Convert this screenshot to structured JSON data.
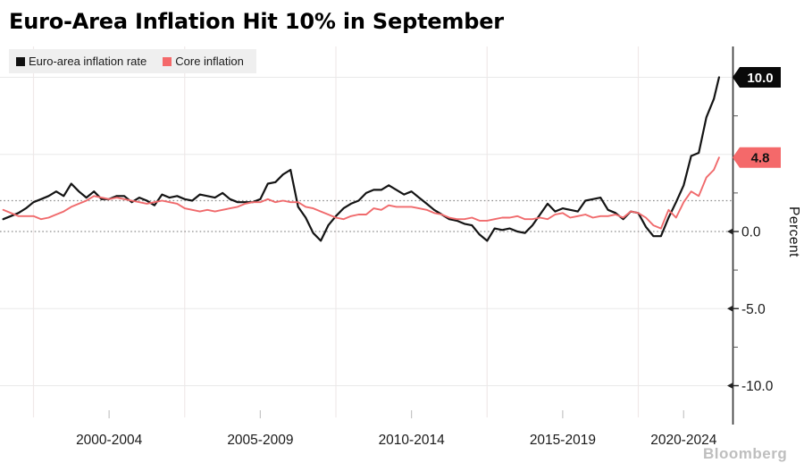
{
  "page": {
    "title": "Euro-Area Inflation Hit 10% in September",
    "watermark": "Bloomberg"
  },
  "legend": {
    "items": [
      {
        "label": "Euro-area inflation rate",
        "color": "#111111"
      },
      {
        "label": "Core inflation",
        "color": "#f4696a"
      }
    ]
  },
  "chart_data": {
    "type": "line",
    "title": "Euro-Area Inflation Hit 10% in September",
    "xlabel": "",
    "ylabel": "Percent",
    "ylim": [
      -12,
      12
    ],
    "xlim": [
      1999,
      2023.1
    ],
    "grid": {
      "h_light_values": [
        10,
        5,
        -5,
        -10
      ],
      "h_dotted_values": [
        2,
        0
      ],
      "v_gridline_years": [
        2000,
        2005,
        2010,
        2015,
        2020
      ]
    },
    "yticks": {
      "labeled": [
        {
          "value": 0,
          "label": "0.0"
        },
        {
          "value": -5,
          "label": "-5.0"
        },
        {
          "value": -10,
          "label": "-10.0"
        }
      ],
      "minor": [
        7.5,
        2.5,
        -2.5,
        -7.5
      ]
    },
    "xticks": [
      {
        "label": "2000-2004",
        "center_year": 2002.5
      },
      {
        "label": "2005-2009",
        "center_year": 2007.5
      },
      {
        "label": "2010-2014",
        "center_year": 2012.5
      },
      {
        "label": "2015-2019",
        "center_year": 2017.5
      },
      {
        "label": "2020-2024",
        "center_year": 2021.5
      }
    ],
    "end_labels": [
      {
        "label": "10.0",
        "value": 10.0,
        "bg": "#0a0a0a",
        "fg": "#ffffff"
      },
      {
        "label": "4.8",
        "value": 4.8,
        "bg": "#f4696a",
        "fg": "#111111"
      }
    ],
    "series": [
      {
        "name": "Euro-area inflation rate",
        "color": "#141414",
        "width": 2.2,
        "points": [
          [
            1999.0,
            0.8
          ],
          [
            1999.25,
            1.0
          ],
          [
            1999.5,
            1.2
          ],
          [
            1999.75,
            1.5
          ],
          [
            2000.0,
            1.9
          ],
          [
            2000.25,
            2.1
          ],
          [
            2000.5,
            2.3
          ],
          [
            2000.75,
            2.6
          ],
          [
            2001.0,
            2.3
          ],
          [
            2001.25,
            3.1
          ],
          [
            2001.5,
            2.6
          ],
          [
            2001.75,
            2.2
          ],
          [
            2002.0,
            2.6
          ],
          [
            2002.25,
            2.1
          ],
          [
            2002.5,
            2.1
          ],
          [
            2002.75,
            2.3
          ],
          [
            2003.0,
            2.3
          ],
          [
            2003.25,
            1.9
          ],
          [
            2003.5,
            2.2
          ],
          [
            2003.75,
            2.0
          ],
          [
            2004.0,
            1.7
          ],
          [
            2004.25,
            2.4
          ],
          [
            2004.5,
            2.2
          ],
          [
            2004.75,
            2.3
          ],
          [
            2005.0,
            2.1
          ],
          [
            2005.25,
            2.0
          ],
          [
            2005.5,
            2.4
          ],
          [
            2005.75,
            2.3
          ],
          [
            2006.0,
            2.2
          ],
          [
            2006.25,
            2.5
          ],
          [
            2006.5,
            2.1
          ],
          [
            2006.75,
            1.9
          ],
          [
            2007.0,
            1.9
          ],
          [
            2007.25,
            1.9
          ],
          [
            2007.5,
            2.1
          ],
          [
            2007.75,
            3.1
          ],
          [
            2008.0,
            3.2
          ],
          [
            2008.25,
            3.7
          ],
          [
            2008.5,
            4.0
          ],
          [
            2008.75,
            1.6
          ],
          [
            2009.0,
            0.9
          ],
          [
            2009.25,
            -0.1
          ],
          [
            2009.5,
            -0.6
          ],
          [
            2009.75,
            0.4
          ],
          [
            2010.0,
            1.0
          ],
          [
            2010.25,
            1.5
          ],
          [
            2010.5,
            1.8
          ],
          [
            2010.75,
            2.0
          ],
          [
            2011.0,
            2.5
          ],
          [
            2011.25,
            2.7
          ],
          [
            2011.5,
            2.7
          ],
          [
            2011.75,
            3.0
          ],
          [
            2012.0,
            2.7
          ],
          [
            2012.25,
            2.4
          ],
          [
            2012.5,
            2.6
          ],
          [
            2012.75,
            2.2
          ],
          [
            2013.0,
            1.8
          ],
          [
            2013.25,
            1.4
          ],
          [
            2013.5,
            1.1
          ],
          [
            2013.75,
            0.8
          ],
          [
            2014.0,
            0.7
          ],
          [
            2014.25,
            0.5
          ],
          [
            2014.5,
            0.4
          ],
          [
            2014.75,
            -0.2
          ],
          [
            2015.0,
            -0.6
          ],
          [
            2015.25,
            0.2
          ],
          [
            2015.5,
            0.1
          ],
          [
            2015.75,
            0.2
          ],
          [
            2016.0,
            0.0
          ],
          [
            2016.25,
            -0.1
          ],
          [
            2016.5,
            0.4
          ],
          [
            2016.75,
            1.1
          ],
          [
            2017.0,
            1.8
          ],
          [
            2017.25,
            1.3
          ],
          [
            2017.5,
            1.5
          ],
          [
            2017.75,
            1.4
          ],
          [
            2018.0,
            1.3
          ],
          [
            2018.25,
            2.0
          ],
          [
            2018.5,
            2.1
          ],
          [
            2018.75,
            2.2
          ],
          [
            2019.0,
            1.4
          ],
          [
            2019.25,
            1.2
          ],
          [
            2019.5,
            0.8
          ],
          [
            2019.75,
            1.3
          ],
          [
            2020.0,
            1.2
          ],
          [
            2020.25,
            0.3
          ],
          [
            2020.5,
            -0.3
          ],
          [
            2020.75,
            -0.3
          ],
          [
            2021.0,
            0.9
          ],
          [
            2021.25,
            1.9
          ],
          [
            2021.5,
            3.0
          ],
          [
            2021.75,
            4.9
          ],
          [
            2022.0,
            5.1
          ],
          [
            2022.25,
            7.4
          ],
          [
            2022.5,
            8.6
          ],
          [
            2022.67,
            10.0
          ]
        ]
      },
      {
        "name": "Core inflation",
        "color": "#f06a6c",
        "width": 1.9,
        "points": [
          [
            1999.0,
            1.4
          ],
          [
            1999.25,
            1.2
          ],
          [
            1999.5,
            1.0
          ],
          [
            1999.75,
            1.0
          ],
          [
            2000.0,
            1.0
          ],
          [
            2000.25,
            0.8
          ],
          [
            2000.5,
            0.9
          ],
          [
            2000.75,
            1.1
          ],
          [
            2001.0,
            1.3
          ],
          [
            2001.25,
            1.6
          ],
          [
            2001.5,
            1.8
          ],
          [
            2001.75,
            2.0
          ],
          [
            2002.0,
            2.3
          ],
          [
            2002.25,
            2.2
          ],
          [
            2002.5,
            2.1
          ],
          [
            2002.75,
            2.2
          ],
          [
            2003.0,
            2.1
          ],
          [
            2003.25,
            2.0
          ],
          [
            2003.5,
            1.9
          ],
          [
            2003.75,
            1.8
          ],
          [
            2004.0,
            1.9
          ],
          [
            2004.25,
            2.0
          ],
          [
            2004.5,
            1.9
          ],
          [
            2004.75,
            1.8
          ],
          [
            2005.0,
            1.5
          ],
          [
            2005.25,
            1.4
          ],
          [
            2005.5,
            1.3
          ],
          [
            2005.75,
            1.4
          ],
          [
            2006.0,
            1.3
          ],
          [
            2006.25,
            1.4
          ],
          [
            2006.5,
            1.5
          ],
          [
            2006.75,
            1.6
          ],
          [
            2007.0,
            1.8
          ],
          [
            2007.25,
            1.9
          ],
          [
            2007.5,
            1.9
          ],
          [
            2007.75,
            2.1
          ],
          [
            2008.0,
            1.9
          ],
          [
            2008.25,
            2.0
          ],
          [
            2008.5,
            1.9
          ],
          [
            2008.75,
            1.9
          ],
          [
            2009.0,
            1.6
          ],
          [
            2009.25,
            1.5
          ],
          [
            2009.5,
            1.3
          ],
          [
            2009.75,
            1.1
          ],
          [
            2010.0,
            0.9
          ],
          [
            2010.25,
            0.8
          ],
          [
            2010.5,
            1.0
          ],
          [
            2010.75,
            1.1
          ],
          [
            2011.0,
            1.1
          ],
          [
            2011.25,
            1.5
          ],
          [
            2011.5,
            1.4
          ],
          [
            2011.75,
            1.7
          ],
          [
            2012.0,
            1.6
          ],
          [
            2012.25,
            1.6
          ],
          [
            2012.5,
            1.6
          ],
          [
            2012.75,
            1.5
          ],
          [
            2013.0,
            1.4
          ],
          [
            2013.25,
            1.2
          ],
          [
            2013.5,
            1.1
          ],
          [
            2013.75,
            0.9
          ],
          [
            2014.0,
            0.8
          ],
          [
            2014.25,
            0.8
          ],
          [
            2014.5,
            0.9
          ],
          [
            2014.75,
            0.7
          ],
          [
            2015.0,
            0.7
          ],
          [
            2015.25,
            0.8
          ],
          [
            2015.5,
            0.9
          ],
          [
            2015.75,
            0.9
          ],
          [
            2016.0,
            1.0
          ],
          [
            2016.25,
            0.8
          ],
          [
            2016.5,
            0.8
          ],
          [
            2016.75,
            0.9
          ],
          [
            2017.0,
            0.8
          ],
          [
            2017.25,
            1.1
          ],
          [
            2017.5,
            1.2
          ],
          [
            2017.75,
            0.9
          ],
          [
            2018.0,
            1.0
          ],
          [
            2018.25,
            1.1
          ],
          [
            2018.5,
            0.9
          ],
          [
            2018.75,
            1.0
          ],
          [
            2019.0,
            1.0
          ],
          [
            2019.25,
            1.1
          ],
          [
            2019.5,
            0.9
          ],
          [
            2019.75,
            1.3
          ],
          [
            2020.0,
            1.2
          ],
          [
            2020.25,
            0.9
          ],
          [
            2020.5,
            0.4
          ],
          [
            2020.75,
            0.2
          ],
          [
            2021.0,
            1.4
          ],
          [
            2021.25,
            0.9
          ],
          [
            2021.5,
            1.9
          ],
          [
            2021.75,
            2.6
          ],
          [
            2022.0,
            2.3
          ],
          [
            2022.25,
            3.5
          ],
          [
            2022.5,
            4.0
          ],
          [
            2022.67,
            4.8
          ]
        ]
      }
    ]
  }
}
